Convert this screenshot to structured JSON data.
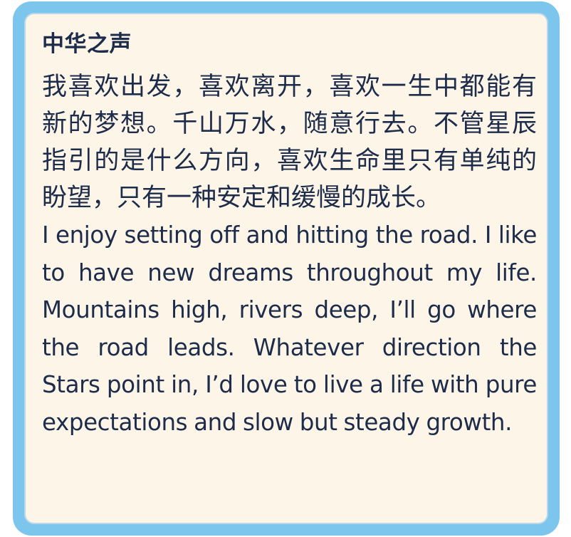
{
  "card": {
    "title": "中华之声",
    "chinese_text": "我喜欢出发，喜欢离开，喜欢一生中都能有新的梦想。千山万水，随意行去。不管星辰指引的是什么方向，喜欢生命里只有单纯的盼望，只有一种安定和缓慢的成长。",
    "english_text": "I enjoy setting off and hitting the road. I like to have new dreams throughout my life. Mountains high, rivers deep, I’ll go where the road leads. Whatever direction the Stars point in, I’d love to live a life with pure expectations and slow but steady growth."
  },
  "colors": {
    "frame": "#7cc6ee",
    "card_background": "#fdf6e8",
    "text": "#1d2c4a"
  }
}
